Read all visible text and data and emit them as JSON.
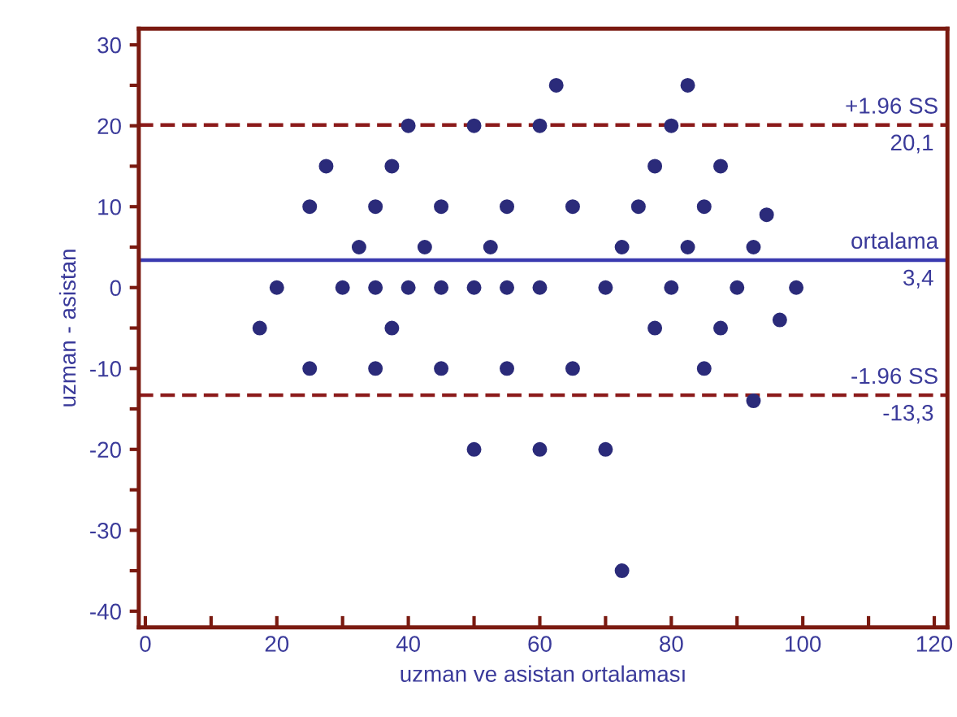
{
  "chart_data": {
    "type": "scatter",
    "xlabel": "uzman ve asistan ortalaması",
    "ylabel": "uzman - asistan",
    "series": [
      {
        "color": "#2b2b7a",
        "x": [
          17.4,
          20,
          25,
          25,
          27.5,
          30,
          32.5,
          35,
          35,
          35,
          37.5,
          37.5,
          40,
          40,
          42.5,
          45,
          45,
          45,
          50,
          50,
          50,
          52.5,
          55,
          55,
          55,
          60,
          60,
          60,
          62.5,
          65,
          65,
          70,
          70,
          72.5,
          72.5,
          75,
          77.5,
          77.5,
          80,
          80,
          82.5,
          82.5,
          85,
          85,
          87.5,
          87.5,
          90,
          92.5,
          92.5,
          94.5,
          96.5,
          99
        ],
        "values": [
          -5,
          0,
          10,
          -10,
          15,
          0,
          5,
          10,
          0,
          -10,
          15,
          -5,
          20,
          0,
          5,
          10,
          0,
          -10,
          20,
          0,
          -20,
          5,
          10,
          0,
          -10,
          20,
          0,
          -20,
          25,
          10,
          -10,
          0,
          -20,
          -35,
          5,
          10,
          15,
          -5,
          20,
          0,
          25,
          5,
          10,
          -10,
          15,
          -5,
          0,
          5,
          -14,
          9,
          -4,
          0
        ]
      }
    ],
    "marker": "circle",
    "xlim": [
      -1,
      122
    ],
    "ylim": [
      -42,
      32
    ],
    "xticks": [
      0,
      {
        "value": 10,
        "label": null
      },
      20,
      {
        "value": 30,
        "label": null
      },
      40,
      {
        "value": 50,
        "label": null
      },
      60,
      {
        "value": 70,
        "label": null
      },
      80,
      {
        "value": 90,
        "label": null
      },
      100,
      {
        "value": 110,
        "label": null
      },
      120
    ],
    "yticks": [
      -40,
      {
        "value": -35,
        "label": null
      },
      -30,
      {
        "value": -25,
        "label": null
      },
      -20,
      {
        "value": -15,
        "label": null
      },
      -10,
      {
        "value": -5,
        "label": null
      },
      0,
      {
        "value": 5,
        "label": null
      },
      10,
      {
        "value": 15,
        "label": null
      },
      20,
      {
        "value": 25,
        "label": null
      },
      30
    ],
    "ref_lines": [
      {
        "axis": "y",
        "value": 20.1,
        "label": "+1.96 SS",
        "color": "#8b1a1a",
        "line_style": "dashed"
      },
      {
        "axis": "y",
        "value": 3.4,
        "label": "ortalama",
        "color": "#3a3ab0",
        "line_style": "solid"
      },
      {
        "axis": "y",
        "value": -13.3,
        "label": "-1.96 SS",
        "color": "#8b1a1a",
        "line_style": "dashed"
      }
    ],
    "annotations": [
      "20,1",
      "3,4",
      "-13,3"
    ],
    "grid": false
  }
}
